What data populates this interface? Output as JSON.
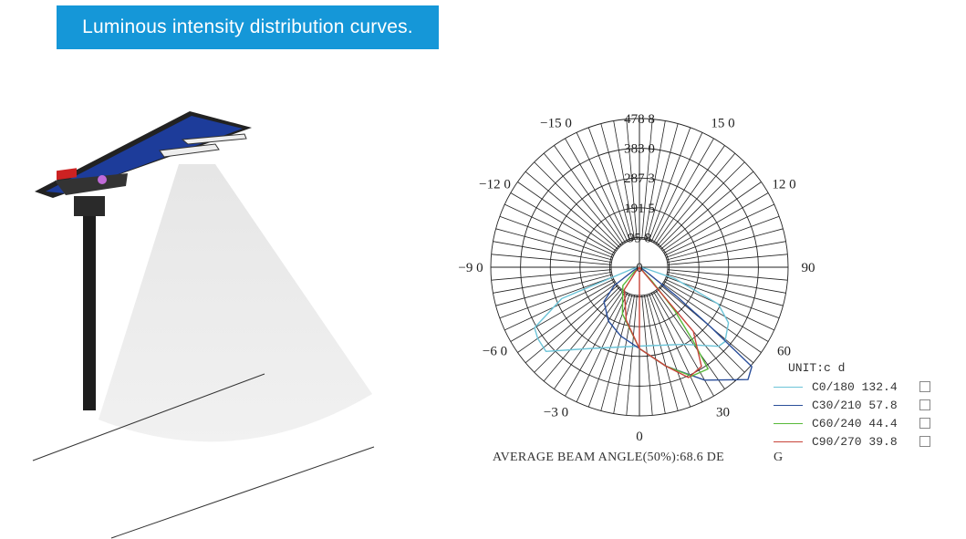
{
  "banner": {
    "title": "Luminous intensity distribution curves."
  },
  "chart_data": {
    "type": "polar-line",
    "title": "Luminous intensity distribution curves.",
    "unit_label": "UNIT:c d",
    "radial_ticks": [
      "95 8",
      "191 5",
      "287 3",
      "383 0",
      "478 8"
    ],
    "radial_tick_values": [
      95.8,
      191.5,
      287.3,
      383.0,
      478.8
    ],
    "radial_max": 478.8,
    "angle_ticks": [
      {
        "angle": -150,
        "label": "−15 0"
      },
      {
        "angle": 150,
        "label": "15 0"
      },
      {
        "angle": -120,
        "label": "−12 0"
      },
      {
        "angle": 120,
        "label": "12 0"
      },
      {
        "angle": -90,
        "label": "−9 0"
      },
      {
        "angle": 90,
        "label": "90"
      },
      {
        "angle": -60,
        "label": "−6 0"
      },
      {
        "angle": 60,
        "label": "60"
      },
      {
        "angle": -30,
        "label": "−3 0"
      },
      {
        "angle": 30,
        "label": "30"
      },
      {
        "angle": 0,
        "label": "0"
      }
    ],
    "center_label": "0",
    "series": [
      {
        "name": "C0/180 132.4",
        "color": "#6cc4d8",
        "points": [
          [
            -78,
            20
          ],
          [
            -68,
            270
          ],
          [
            -60,
            390
          ],
          [
            -55,
            400
          ],
          [
            -48,
            405
          ],
          [
            -30,
            302
          ],
          [
            0,
            254
          ],
          [
            30,
            287
          ],
          [
            45,
            360
          ],
          [
            49,
            365
          ],
          [
            58,
            338
          ],
          [
            65,
            280
          ],
          [
            72,
            120
          ],
          [
            78,
            20
          ]
        ]
      },
      {
        "name": "C30/210 57.8",
        "color": "#2b4f9a",
        "points": [
          [
            -62,
            20
          ],
          [
            -54,
            100
          ],
          [
            -46,
            159
          ],
          [
            -30,
            200
          ],
          [
            -15,
            230
          ],
          [
            0,
            262
          ],
          [
            15,
            330
          ],
          [
            30,
            420
          ],
          [
            44,
            503
          ],
          [
            48.5,
            483
          ],
          [
            50,
            300
          ],
          [
            52,
            150
          ],
          [
            58,
            20
          ]
        ]
      },
      {
        "name": "C60/240 44.4",
        "color": "#58b93a",
        "points": [
          [
            -48,
            25
          ],
          [
            -42,
            80
          ],
          [
            -20,
            160
          ],
          [
            0,
            262
          ],
          [
            15,
            330
          ],
          [
            25.6,
            389
          ],
          [
            34,
            395
          ],
          [
            36,
            297
          ],
          [
            39,
            180
          ],
          [
            42,
            60
          ],
          [
            40,
            5
          ]
        ]
      },
      {
        "name": "C90/270 39.8",
        "color": "#c8443a",
        "points": [
          [
            -40,
            20
          ],
          [
            -34,
            87
          ],
          [
            -14,
            176
          ],
          [
            0,
            262
          ],
          [
            15,
            330
          ],
          [
            24,
            389
          ],
          [
            32,
            377
          ],
          [
            40,
            270
          ],
          [
            40,
            200
          ],
          [
            40,
            100
          ],
          [
            38,
            5
          ]
        ]
      }
    ],
    "extra_line": {
      "series": "C90/270 39.8",
      "angle": 0,
      "value": 262
    },
    "grid": true,
    "legend_position": "bottom-right",
    "beam_angle_text": "AVERAGE BEAM ANGLE(50%):68.6 DE",
    "beam_angle_tail": "G"
  }
}
